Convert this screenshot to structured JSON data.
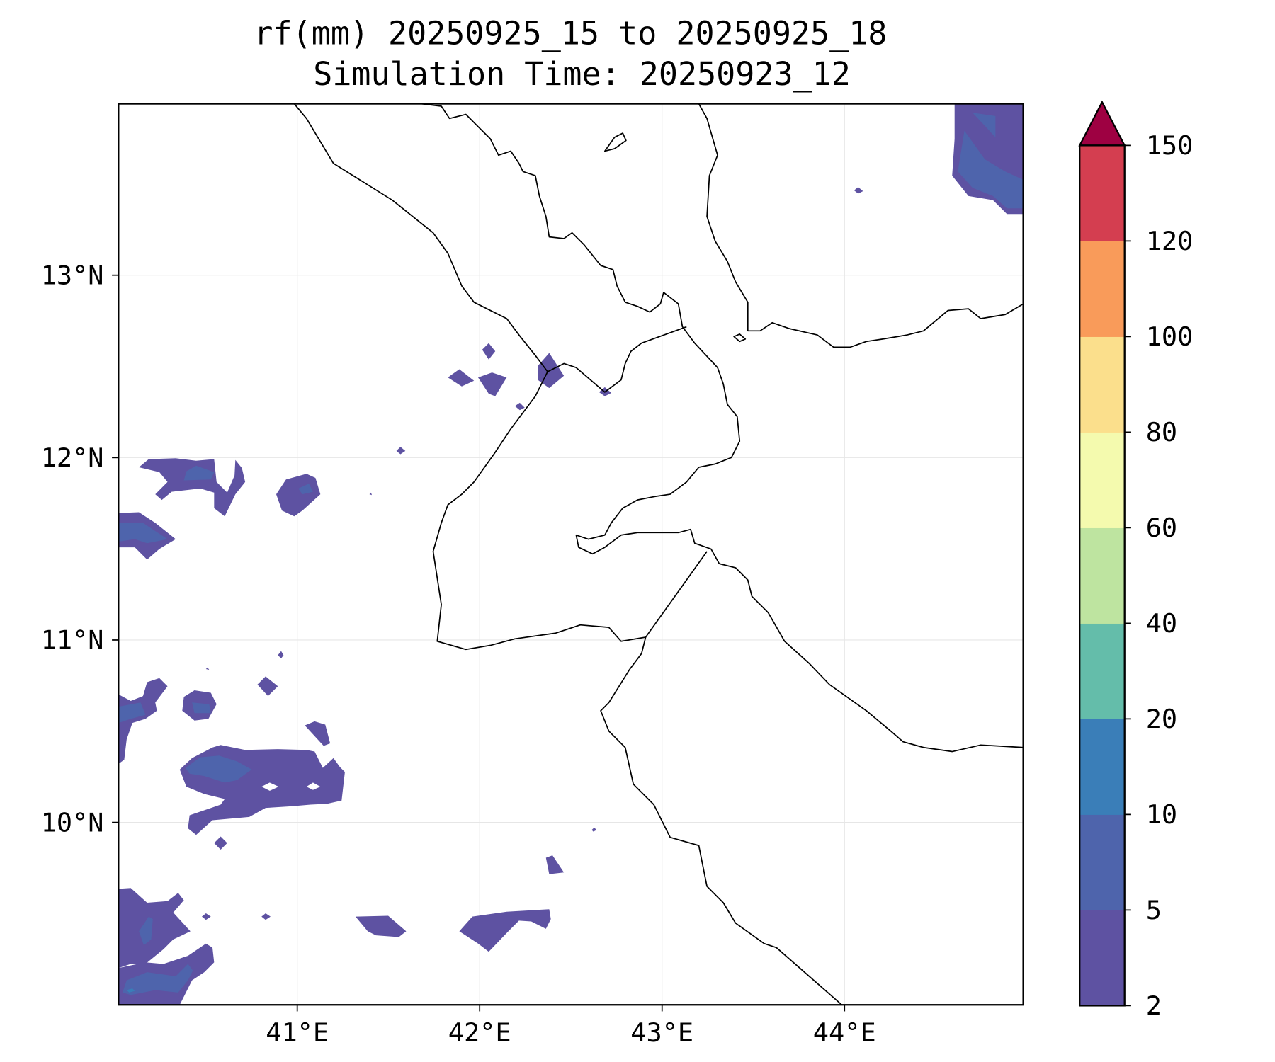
{
  "chart_data": {
    "type": "heatmap",
    "subtype": "filled-contour-map",
    "title": "rf(mm) 20250925_15 to 20250925_18",
    "subtitle": "Simulation Time: 20250923_12",
    "xlabel": "",
    "ylabel": "",
    "xlim": [
      40.02,
      44.98
    ],
    "ylim": [
      9.0,
      13.94
    ],
    "grid": true,
    "x_ticks": [
      {
        "value": 41,
        "label": "41°E"
      },
      {
        "value": 42,
        "label": "42°E"
      },
      {
        "value": 43,
        "label": "43°E"
      },
      {
        "value": 44,
        "label": "44°E"
      }
    ],
    "y_ticks": [
      {
        "value": 13,
        "label": "13°N"
      },
      {
        "value": 12,
        "label": "12°N"
      },
      {
        "value": 11,
        "label": "11°N"
      },
      {
        "value": 10,
        "label": "10°N"
      }
    ],
    "colorbar": {
      "levels": [
        2,
        5,
        10,
        20,
        40,
        60,
        80,
        100,
        120,
        150
      ],
      "tick_labels": [
        "2",
        "5",
        "10",
        "20",
        "40",
        "60",
        "80",
        "100",
        "120",
        "150"
      ],
      "colors": [
        "#5e52a2",
        "#4e64ac",
        "#3a7eb8",
        "#64bdaa",
        "#bee4a0",
        "#f4faae",
        "#fbdf8c",
        "#f99b5a",
        "#d43e50"
      ],
      "extend_max_color": "#9e0142",
      "placement": "right"
    },
    "rain_areas": [
      {
        "region": "north-west Ethiopia highlands (≈40.1–40.7°E, 11.5–12°N)",
        "max_bin": "5-10"
      },
      {
        "region": "central-west (≈40.4–41.3°E, 10–10.5°N)",
        "max_bin": "5-10"
      },
      {
        "region": "south-west (≈40.0–40.5°E, 9.0–9.6°N)",
        "max_bin": "10-20"
      },
      {
        "region": "Eritrea/Djibouti border (≈41.8–42.5°E, 12.3–12.6°N)",
        "max_bin": "2-5"
      },
      {
        "region": "south (≈41.3–42.4°E, 9.3–9.5°N)",
        "max_bin": "2-5"
      },
      {
        "region": "north-east Yemen (≈44.6–45°E, 13.3–13.9°N)",
        "max_bin": "5-10"
      }
    ]
  }
}
